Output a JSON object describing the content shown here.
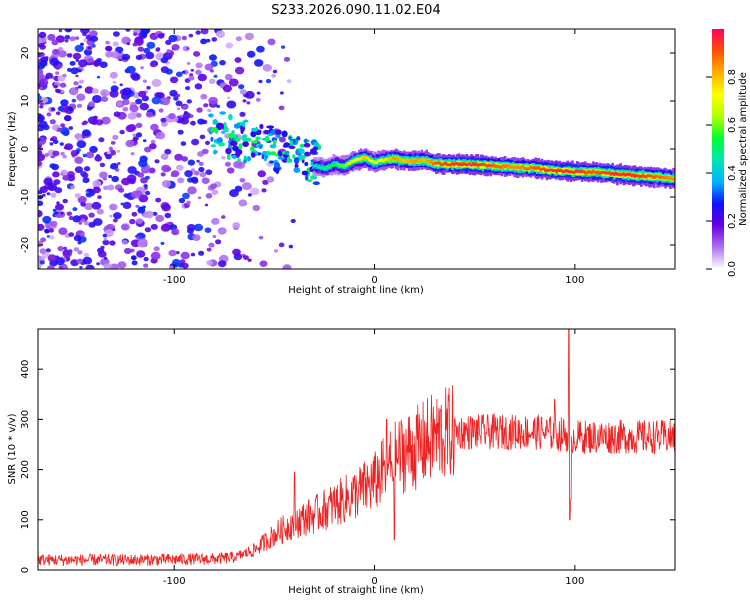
{
  "figure_title": "S233.2026.090.11.02.E04",
  "chart_data": [
    {
      "type": "heatmap",
      "title": "S233.2026.090.11.02.E04",
      "xlabel": "Height of straight line (km)",
      "ylabel": "Frequency (Hz)",
      "xlim": [
        -168,
        150
      ],
      "ylim": [
        -25,
        25
      ],
      "x_ticks": [
        -100,
        0,
        100
      ],
      "y_ticks": [
        -20,
        -10,
        0,
        10,
        20
      ],
      "colorbar": {
        "label": "Normalized spectral amplitude",
        "range": [
          0,
          1
        ],
        "ticks": [
          0.0,
          0.2,
          0.4,
          0.6,
          0.8
        ],
        "tick_labels": [
          "0.0",
          "0.2",
          "0.4",
          "0.6",
          "0.8"
        ],
        "stops": [
          "#ffffff",
          "#b070f0",
          "#6a00e0",
          "#1010ff",
          "#00b4ff",
          "#00e6b4",
          "#00ff30",
          "#b4ff00",
          "#ffff00",
          "#ffb000",
          "#ff5000",
          "#ff0060"
        ]
      },
      "ridge": {
        "description": "frequency track of the strong signal",
        "x": [
          -30,
          -25,
          -20,
          -15,
          -10,
          -5,
          0,
          5,
          10,
          15,
          20,
          25,
          30,
          40,
          50,
          60,
          70,
          80,
          90,
          100,
          110,
          120,
          130,
          140,
          150
        ],
        "y": [
          -3.5,
          -4,
          -3.2,
          -3.5,
          -2.5,
          -1.8,
          -2.8,
          -2.3,
          -2,
          -2.4,
          -2.5,
          -2.3,
          -3,
          -3.2,
          -3.3,
          -3.5,
          -3.8,
          -4,
          -4.5,
          -4.7,
          -4.8,
          -5.2,
          -5.5,
          -5.8,
          -6.2
        ],
        "amplitude": [
          0.45,
          0.5,
          0.55,
          0.6,
          0.7,
          0.8,
          0.7,
          0.75,
          0.85,
          0.8,
          0.85,
          0.8,
          0.9,
          0.95,
          0.95,
          0.9,
          0.85,
          0.9,
          0.95,
          0.95,
          0.9,
          0.95,
          0.95,
          0.9,
          0.85
        ]
      },
      "noise_region": {
        "x_range": [
          -168,
          -40
        ],
        "y_range": [
          -25,
          25
        ],
        "amplitude_range": [
          0.05,
          0.3
        ]
      }
    },
    {
      "type": "line",
      "xlabel": "Height of straight line (km)",
      "ylabel": "SNR (10 * v/v)",
      "xlim": [
        -168,
        150
      ],
      "ylim": [
        0,
        480
      ],
      "x_ticks": [
        -100,
        0,
        100
      ],
      "y_ticks": [
        0,
        100,
        200,
        300,
        400
      ],
      "series": [
        {
          "name": "SNR",
          "color": "#ee2222",
          "trend_x": [
            -168,
            -120,
            -80,
            -70,
            -60,
            -50,
            -40,
            -30,
            -20,
            -10,
            0,
            5,
            10,
            15,
            20,
            30,
            40,
            60,
            80,
            95,
            100,
            120,
            150
          ],
          "trend_y": [
            20,
            20,
            22,
            25,
            40,
            70,
            95,
            110,
            130,
            150,
            175,
            200,
            220,
            235,
            240,
            265,
            275,
            275,
            275,
            270,
            265,
            265,
            265
          ],
          "spikes_x": [
            -40,
            6,
            10,
            90,
            97,
            97.5,
            98
          ],
          "spikes_y": [
            195,
            300,
            60,
            340,
            480,
            100,
            140
          ]
        }
      ]
    }
  ]
}
